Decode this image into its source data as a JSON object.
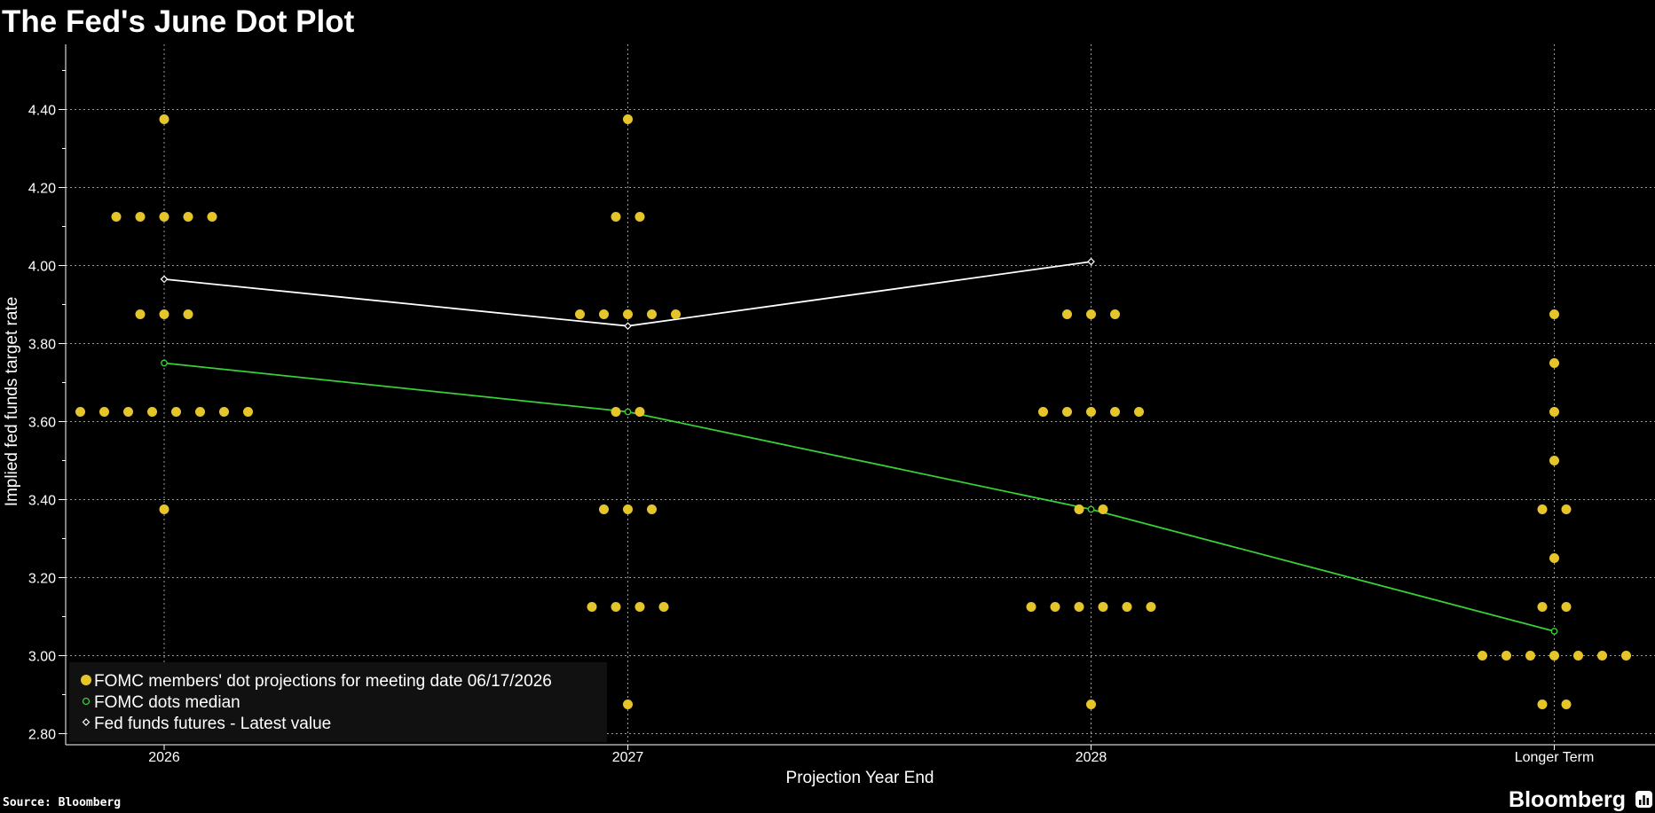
{
  "colors": {
    "background": "#000000",
    "dots": "#e5c52a",
    "median": "#38d038",
    "futures": "#ffffff",
    "grid": "#9a9a9a",
    "legend_bg": "#111111"
  },
  "footer": {
    "source": "Source: Bloomberg",
    "brand": "Bloomberg",
    "brand_icon": "bar-chart-icon"
  },
  "chart_data": {
    "type": "scatter",
    "title": "The Fed's June Dot Plot",
    "xlabel": "Projection Year End",
    "ylabel": "Implied fed funds target rate",
    "categories": [
      "2026",
      "2027",
      "2028",
      "Longer Term"
    ],
    "ylim": [
      2.75,
      4.55
    ],
    "yticks": [
      "2.80",
      "3.00",
      "3.20",
      "3.40",
      "3.60",
      "3.80",
      "4.00",
      "4.20",
      "4.40"
    ],
    "grid": true,
    "legend_position": "bottom-left",
    "dots": {
      "name": "FOMC members' dot projections for meeting date 06/17/2026",
      "points": {
        "2026": [
          {
            "value": 4.375,
            "count": 1
          },
          {
            "value": 4.125,
            "count": 5
          },
          {
            "value": 3.875,
            "count": 3
          },
          {
            "value": 3.625,
            "count": 8
          },
          {
            "value": 3.375,
            "count": 1
          }
        ],
        "2027": [
          {
            "value": 4.375,
            "count": 1
          },
          {
            "value": 4.125,
            "count": 2
          },
          {
            "value": 3.875,
            "count": 5
          },
          {
            "value": 3.625,
            "count": 2
          },
          {
            "value": 3.375,
            "count": 3
          },
          {
            "value": 3.125,
            "count": 4
          },
          {
            "value": 2.875,
            "count": 1
          }
        ],
        "2028": [
          {
            "value": 3.875,
            "count": 3
          },
          {
            "value": 3.625,
            "count": 5
          },
          {
            "value": 3.375,
            "count": 2
          },
          {
            "value": 3.125,
            "count": 6
          },
          {
            "value": 2.875,
            "count": 1
          }
        ],
        "Longer Term": [
          {
            "value": 3.875,
            "count": 1
          },
          {
            "value": 3.75,
            "count": 1
          },
          {
            "value": 3.625,
            "count": 1
          },
          {
            "value": 3.5,
            "count": 1
          },
          {
            "value": 3.375,
            "count": 2
          },
          {
            "value": 3.25,
            "count": 1
          },
          {
            "value": 3.125,
            "count": 2
          },
          {
            "value": 3.0,
            "count": 7
          },
          {
            "value": 2.875,
            "count": 2
          }
        ]
      }
    },
    "series": [
      {
        "name": "FOMC dots median",
        "values": [
          3.75,
          3.625,
          3.375,
          3.0625
        ]
      },
      {
        "name": "Fed funds futures - Latest value",
        "values": [
          3.965,
          3.845,
          4.01,
          null
        ]
      }
    ]
  }
}
